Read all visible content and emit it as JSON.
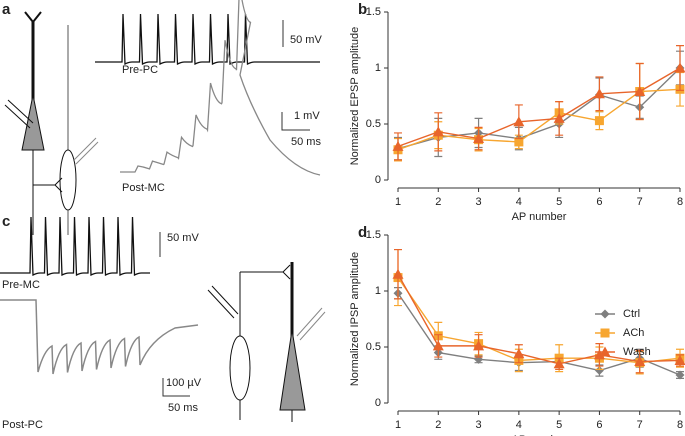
{
  "schematics": {
    "a": {
      "label": "a",
      "pre": "Pre-PC",
      "post": "Post-MC",
      "pre_scale": "50 mV",
      "post_scale": "1 mV",
      "time_scale": "50 ms"
    },
    "c": {
      "label": "c",
      "pre": "Pre-MC",
      "post": "Post-PC",
      "pre_scale": "50 mV",
      "post_scale": "100 µV",
      "time_scale": "50 ms"
    }
  },
  "chart_data": [
    {
      "type": "line",
      "panel": "b",
      "x_label": "AP number",
      "y_label": "Normalized EPSP amplitude",
      "x": [
        1,
        2,
        3,
        4,
        5,
        6,
        7,
        8
      ],
      "xlim": [
        1,
        8
      ],
      "xticks": [
        1,
        2,
        3,
        4,
        5,
        6,
        7,
        8
      ],
      "ylim": [
        0,
        1.5
      ],
      "yticks": [
        0,
        0.5,
        1,
        1.5
      ],
      "legend": false,
      "series": [
        {
          "color": "#7f7f7f",
          "marker": "diamond",
          "values": [
            0.28,
            0.38,
            0.42,
            0.37,
            0.5,
            0.76,
            0.65,
            1.0
          ],
          "errors": [
            0.1,
            0.17,
            0.13,
            0.1,
            0.12,
            0.15,
            0.1,
            0.15
          ]
        },
        {
          "color": "#f7a630",
          "marker": "square",
          "values": [
            0.27,
            0.4,
            0.36,
            0.34,
            0.6,
            0.53,
            0.79,
            0.81
          ],
          "errors": [
            0.1,
            0.12,
            0.1,
            0.06,
            0.1,
            0.08,
            0.25,
            0.15
          ]
        },
        {
          "color": "#e8652b",
          "marker": "triangle",
          "values": [
            0.3,
            0.43,
            0.37,
            0.52,
            0.55,
            0.77,
            0.79,
            1.0
          ],
          "errors": [
            0.12,
            0.17,
            0.1,
            0.15,
            0.15,
            0.15,
            0.25,
            0.2
          ]
        }
      ]
    },
    {
      "type": "line",
      "panel": "d",
      "x_label": "AP number",
      "y_label": "Normalized IPSP amplitude",
      "x": [
        1,
        2,
        3,
        4,
        5,
        6,
        7,
        8
      ],
      "xlim": [
        1,
        8
      ],
      "xticks": [
        1,
        2,
        3,
        4,
        5,
        6,
        7,
        8
      ],
      "ylim": [
        0,
        1.5
      ],
      "yticks": [
        0,
        0.5,
        1,
        1.5
      ],
      "legend": "center right",
      "series": [
        {
          "name": "Ctrl",
          "color": "#7f7f7f",
          "marker": "diamond",
          "values": [
            0.98,
            0.45,
            0.39,
            0.36,
            0.37,
            0.29,
            0.4,
            0.25
          ],
          "errors": [
            0.05,
            0.06,
            0.03,
            0.07,
            0.05,
            0.05,
            0.08,
            0.03
          ]
        },
        {
          "name": "ACh",
          "color": "#f7a630",
          "marker": "square",
          "values": [
            1.12,
            0.6,
            0.53,
            0.38,
            0.4,
            0.4,
            0.36,
            0.4
          ],
          "errors": [
            0.25,
            0.12,
            0.1,
            0.1,
            0.12,
            0.1,
            0.1,
            0.08
          ]
        },
        {
          "name": "Wash",
          "color": "#e8652b",
          "marker": "triangle",
          "values": [
            1.15,
            0.51,
            0.51,
            0.44,
            0.35,
            0.43,
            0.37,
            0.38
          ],
          "errors": [
            0.22,
            0.1,
            0.1,
            0.08,
            0.05,
            0.1,
            0.1,
            0.05
          ]
        }
      ]
    }
  ]
}
